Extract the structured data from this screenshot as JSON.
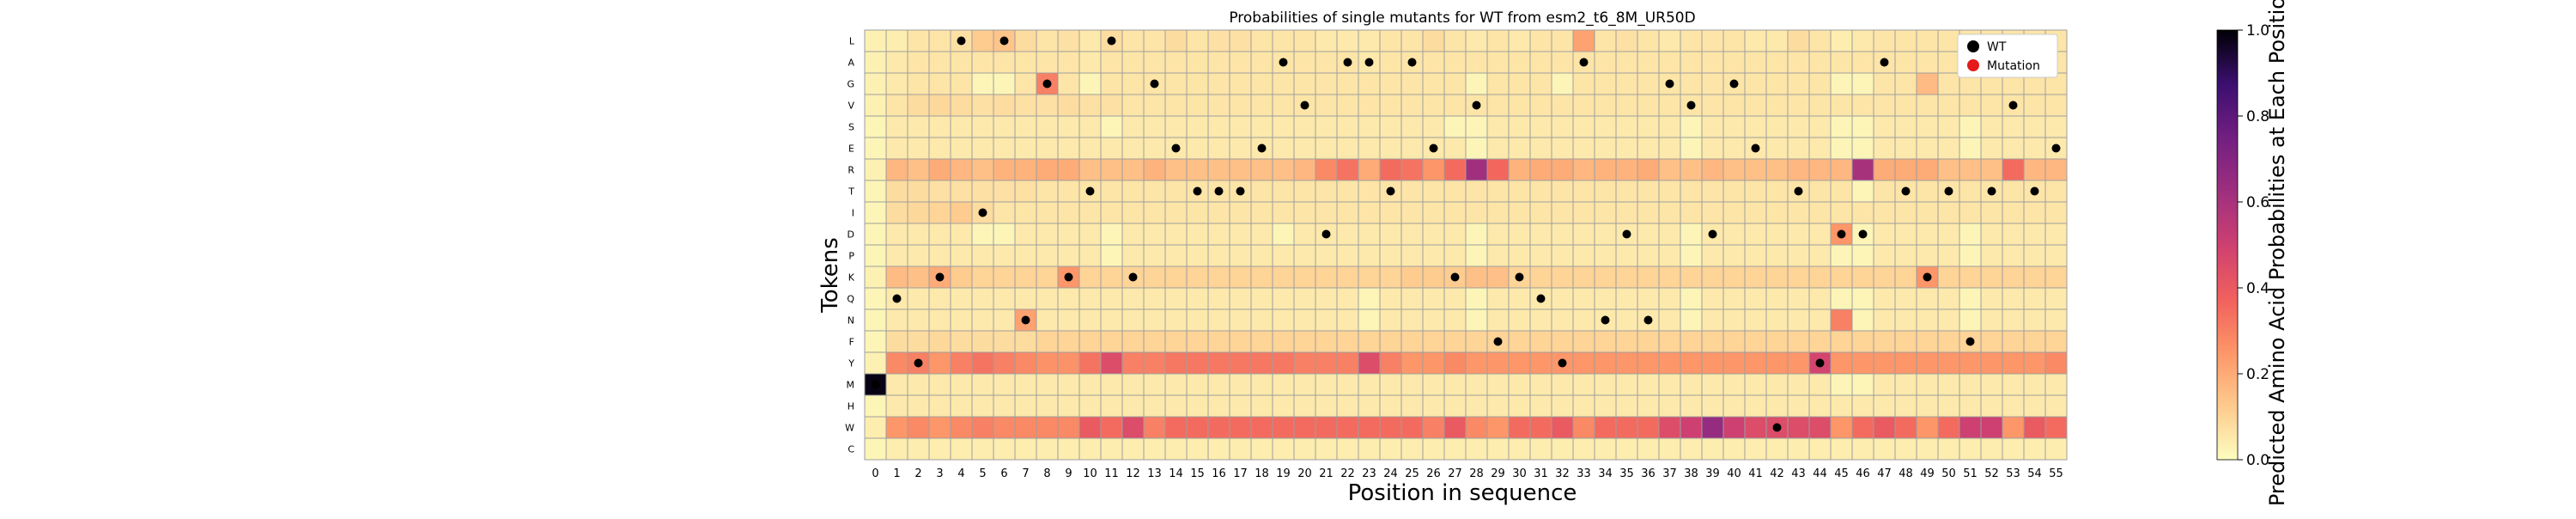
{
  "chart_data": {
    "type": "heatmap",
    "title": "Probabilities of single mutants for WT from esm2_t6_8M_UR50D",
    "xlabel": "Position in sequence",
    "ylabel": "Tokens",
    "colorbar_label": "Predicted Amino Acid Probabilities at Each Position",
    "colorbar_ticks": [
      "0.0",
      "0.2",
      "0.4",
      "0.6",
      "0.8",
      "1.0"
    ],
    "colorbar_range": [
      0,
      1
    ],
    "colormap": "magma_r",
    "tokens": [
      "L",
      "A",
      "G",
      "V",
      "S",
      "E",
      "R",
      "T",
      "I",
      "D",
      "P",
      "K",
      "Q",
      "N",
      "F",
      "Y",
      "M",
      "H",
      "W",
      "C"
    ],
    "positions": [
      0,
      1,
      2,
      3,
      4,
      5,
      6,
      7,
      8,
      9,
      10,
      11,
      12,
      13,
      14,
      15,
      16,
      17,
      18,
      19,
      20,
      21,
      22,
      23,
      24,
      25,
      26,
      27,
      28,
      29,
      30,
      31,
      32,
      33,
      34,
      35,
      36,
      37,
      38,
      39,
      40,
      41,
      42,
      43,
      44,
      45,
      46,
      47,
      48,
      49,
      50,
      51,
      52,
      53,
      54,
      55
    ],
    "wt_tokens": [
      "M",
      "Q",
      "Y",
      "K",
      "L",
      "I",
      "L",
      "N",
      "G",
      "K",
      "T",
      "L",
      "K",
      "G",
      "E",
      "T",
      "T",
      "T",
      "E",
      "A",
      "V",
      "D",
      "A",
      "A",
      "T",
      "A",
      "E",
      "K",
      "V",
      "F",
      "K",
      "Q",
      "Y",
      "A",
      "N",
      "D",
      "N",
      "G",
      "V",
      "D",
      "G",
      "E",
      "W",
      "T",
      "Y",
      "D",
      "D",
      "A",
      "T",
      "K",
      "T",
      "F",
      "T",
      "V",
      "T",
      "E"
    ],
    "legend": {
      "position": "upper-right",
      "items": [
        {
          "label": "WT",
          "color": "#000000"
        },
        {
          "label": "Mutation",
          "color": "#e41a1c"
        }
      ]
    },
    "grid": true,
    "values": [
      [
        0.03,
        0.04,
        0.06,
        0.06,
        0.07,
        0.12,
        0.14,
        0.08,
        0.06,
        0.07,
        0.05,
        0.08,
        0.06,
        0.06,
        0.08,
        0.06,
        0.07,
        0.07,
        0.06,
        0.06,
        0.06,
        0.05,
        0.05,
        0.05,
        0.06,
        0.06,
        0.08,
        0.06,
        0.05,
        0.06,
        0.05,
        0.06,
        0.06,
        0.22,
        0.06,
        0.07,
        0.06,
        0.05,
        0.06,
        0.06,
        0.06,
        0.05,
        0.05,
        0.08,
        0.06,
        0.04,
        0.05,
        0.06,
        0.06,
        0.06,
        0.06,
        0.06,
        0.06,
        0.06,
        0.06,
        0.06
      ],
      [
        0.03,
        0.05,
        0.06,
        0.06,
        0.06,
        0.06,
        0.06,
        0.06,
        0.06,
        0.06,
        0.05,
        0.06,
        0.06,
        0.06,
        0.06,
        0.06,
        0.06,
        0.06,
        0.06,
        0.06,
        0.06,
        0.06,
        0.06,
        0.05,
        0.06,
        0.06,
        0.06,
        0.06,
        0.06,
        0.06,
        0.06,
        0.06,
        0.06,
        0.06,
        0.06,
        0.06,
        0.06,
        0.06,
        0.06,
        0.06,
        0.06,
        0.06,
        0.06,
        0.06,
        0.06,
        0.06,
        0.06,
        0.06,
        0.06,
        0.06,
        0.06,
        0.06,
        0.06,
        0.06,
        0.06,
        0.06
      ],
      [
        0.03,
        0.05,
        0.06,
        0.06,
        0.06,
        0.02,
        0.02,
        0.06,
        0.3,
        0.06,
        0.02,
        0.06,
        0.06,
        0.06,
        0.06,
        0.06,
        0.06,
        0.06,
        0.06,
        0.06,
        0.06,
        0.06,
        0.06,
        0.06,
        0.06,
        0.06,
        0.06,
        0.06,
        0.02,
        0.06,
        0.06,
        0.06,
        0.02,
        0.06,
        0.06,
        0.06,
        0.06,
        0.06,
        0.06,
        0.06,
        0.06,
        0.06,
        0.06,
        0.06,
        0.06,
        0.02,
        0.02,
        0.06,
        0.06,
        0.16,
        0.06,
        0.06,
        0.06,
        0.06,
        0.06,
        0.06
      ],
      [
        0.03,
        0.06,
        0.08,
        0.09,
        0.08,
        0.07,
        0.08,
        0.07,
        0.07,
        0.08,
        0.07,
        0.07,
        0.06,
        0.06,
        0.06,
        0.06,
        0.06,
        0.06,
        0.06,
        0.06,
        0.06,
        0.06,
        0.06,
        0.06,
        0.06,
        0.06,
        0.06,
        0.06,
        0.06,
        0.06,
        0.06,
        0.06,
        0.06,
        0.06,
        0.06,
        0.06,
        0.06,
        0.06,
        0.06,
        0.06,
        0.06,
        0.06,
        0.06,
        0.06,
        0.06,
        0.06,
        0.06,
        0.06,
        0.06,
        0.06,
        0.06,
        0.06,
        0.06,
        0.06,
        0.06,
        0.06
      ],
      [
        0.02,
        0.05,
        0.05,
        0.05,
        0.05,
        0.05,
        0.05,
        0.05,
        0.05,
        0.05,
        0.05,
        0.02,
        0.05,
        0.05,
        0.05,
        0.05,
        0.05,
        0.05,
        0.05,
        0.05,
        0.05,
        0.05,
        0.05,
        0.05,
        0.05,
        0.05,
        0.05,
        0.02,
        0.02,
        0.05,
        0.05,
        0.05,
        0.05,
        0.05,
        0.05,
        0.05,
        0.05,
        0.05,
        0.02,
        0.05,
        0.05,
        0.05,
        0.05,
        0.05,
        0.05,
        0.02,
        0.02,
        0.05,
        0.05,
        0.05,
        0.05,
        0.02,
        0.05,
        0.05,
        0.05,
        0.05
      ],
      [
        0.02,
        0.05,
        0.05,
        0.05,
        0.05,
        0.05,
        0.05,
        0.05,
        0.05,
        0.05,
        0.05,
        0.05,
        0.05,
        0.05,
        0.05,
        0.05,
        0.05,
        0.05,
        0.05,
        0.05,
        0.05,
        0.05,
        0.05,
        0.05,
        0.05,
        0.05,
        0.05,
        0.05,
        0.02,
        0.05,
        0.05,
        0.05,
        0.05,
        0.05,
        0.05,
        0.05,
        0.05,
        0.05,
        0.02,
        0.05,
        0.05,
        0.05,
        0.05,
        0.05,
        0.05,
        0.02,
        0.02,
        0.05,
        0.05,
        0.05,
        0.05,
        0.02,
        0.05,
        0.05,
        0.05,
        0.05
      ],
      [
        0.03,
        0.17,
        0.15,
        0.2,
        0.17,
        0.15,
        0.18,
        0.18,
        0.2,
        0.2,
        0.15,
        0.15,
        0.15,
        0.18,
        0.15,
        0.15,
        0.15,
        0.15,
        0.15,
        0.15,
        0.17,
        0.28,
        0.33,
        0.2,
        0.35,
        0.33,
        0.25,
        0.35,
        0.62,
        0.36,
        0.18,
        0.2,
        0.2,
        0.17,
        0.18,
        0.18,
        0.2,
        0.15,
        0.15,
        0.17,
        0.15,
        0.15,
        0.15,
        0.17,
        0.17,
        0.17,
        0.6,
        0.2,
        0.2,
        0.2,
        0.15,
        0.15,
        0.15,
        0.35,
        0.17,
        0.17
      ],
      [
        0.02,
        0.08,
        0.08,
        0.07,
        0.07,
        0.07,
        0.07,
        0.07,
        0.06,
        0.06,
        0.06,
        0.06,
        0.06,
        0.06,
        0.06,
        0.06,
        0.06,
        0.06,
        0.06,
        0.06,
        0.06,
        0.06,
        0.06,
        0.06,
        0.06,
        0.06,
        0.06,
        0.06,
        0.06,
        0.06,
        0.06,
        0.06,
        0.06,
        0.06,
        0.06,
        0.06,
        0.06,
        0.06,
        0.06,
        0.06,
        0.06,
        0.06,
        0.06,
        0.06,
        0.06,
        0.06,
        0.02,
        0.06,
        0.06,
        0.06,
        0.06,
        0.06,
        0.06,
        0.06,
        0.06,
        0.06
      ],
      [
        0.02,
        0.08,
        0.09,
        0.1,
        0.12,
        0.08,
        0.06,
        0.06,
        0.06,
        0.06,
        0.06,
        0.06,
        0.06,
        0.06,
        0.06,
        0.06,
        0.06,
        0.06,
        0.06,
        0.06,
        0.06,
        0.06,
        0.06,
        0.06,
        0.06,
        0.06,
        0.06,
        0.06,
        0.06,
        0.06,
        0.06,
        0.06,
        0.06,
        0.06,
        0.06,
        0.06,
        0.06,
        0.06,
        0.06,
        0.06,
        0.06,
        0.06,
        0.06,
        0.06,
        0.06,
        0.06,
        0.06,
        0.06,
        0.06,
        0.06,
        0.06,
        0.06,
        0.06,
        0.06,
        0.06,
        0.06
      ],
      [
        0.02,
        0.05,
        0.05,
        0.05,
        0.05,
        0.02,
        0.02,
        0.05,
        0.05,
        0.05,
        0.05,
        0.02,
        0.05,
        0.05,
        0.05,
        0.05,
        0.05,
        0.05,
        0.05,
        0.02,
        0.05,
        0.05,
        0.05,
        0.05,
        0.05,
        0.05,
        0.05,
        0.05,
        0.02,
        0.05,
        0.05,
        0.05,
        0.05,
        0.05,
        0.05,
        0.05,
        0.05,
        0.05,
        0.02,
        0.05,
        0.05,
        0.05,
        0.05,
        0.05,
        0.05,
        0.25,
        0.02,
        0.05,
        0.05,
        0.05,
        0.05,
        0.02,
        0.05,
        0.05,
        0.05,
        0.05
      ],
      [
        0.02,
        0.05,
        0.05,
        0.05,
        0.05,
        0.05,
        0.05,
        0.05,
        0.05,
        0.05,
        0.05,
        0.02,
        0.05,
        0.05,
        0.05,
        0.05,
        0.05,
        0.05,
        0.05,
        0.05,
        0.05,
        0.05,
        0.05,
        0.05,
        0.05,
        0.05,
        0.05,
        0.05,
        0.02,
        0.05,
        0.05,
        0.05,
        0.05,
        0.05,
        0.05,
        0.05,
        0.05,
        0.05,
        0.02,
        0.05,
        0.05,
        0.05,
        0.05,
        0.05,
        0.05,
        0.02,
        0.02,
        0.05,
        0.05,
        0.05,
        0.05,
        0.02,
        0.05,
        0.05,
        0.05,
        0.05
      ],
      [
        0.03,
        0.16,
        0.15,
        0.2,
        0.12,
        0.1,
        0.1,
        0.1,
        0.1,
        0.25,
        0.1,
        0.1,
        0.1,
        0.1,
        0.1,
        0.1,
        0.1,
        0.1,
        0.1,
        0.1,
        0.1,
        0.1,
        0.1,
        0.1,
        0.1,
        0.12,
        0.12,
        0.12,
        0.15,
        0.15,
        0.1,
        0.1,
        0.1,
        0.1,
        0.1,
        0.1,
        0.1,
        0.1,
        0.1,
        0.1,
        0.1,
        0.1,
        0.1,
        0.1,
        0.1,
        0.1,
        0.1,
        0.1,
        0.1,
        0.25,
        0.1,
        0.1,
        0.1,
        0.1,
        0.1,
        0.1
      ],
      [
        0.02,
        0.05,
        0.05,
        0.05,
        0.05,
        0.05,
        0.05,
        0.05,
        0.05,
        0.05,
        0.05,
        0.05,
        0.05,
        0.05,
        0.05,
        0.05,
        0.05,
        0.05,
        0.05,
        0.05,
        0.05,
        0.05,
        0.05,
        0.02,
        0.05,
        0.05,
        0.05,
        0.05,
        0.02,
        0.05,
        0.05,
        0.05,
        0.05,
        0.05,
        0.05,
        0.05,
        0.05,
        0.05,
        0.02,
        0.05,
        0.05,
        0.05,
        0.05,
        0.05,
        0.05,
        0.02,
        0.02,
        0.05,
        0.05,
        0.05,
        0.05,
        0.02,
        0.05,
        0.05,
        0.05,
        0.05
      ],
      [
        0.02,
        0.05,
        0.05,
        0.05,
        0.05,
        0.05,
        0.05,
        0.22,
        0.05,
        0.05,
        0.05,
        0.05,
        0.05,
        0.05,
        0.05,
        0.05,
        0.05,
        0.05,
        0.05,
        0.05,
        0.05,
        0.05,
        0.05,
        0.02,
        0.05,
        0.05,
        0.05,
        0.05,
        0.02,
        0.05,
        0.05,
        0.05,
        0.05,
        0.05,
        0.05,
        0.05,
        0.05,
        0.05,
        0.02,
        0.05,
        0.05,
        0.05,
        0.05,
        0.05,
        0.05,
        0.3,
        0.02,
        0.05,
        0.05,
        0.05,
        0.05,
        0.02,
        0.05,
        0.05,
        0.05,
        0.05
      ],
      [
        0.02,
        0.08,
        0.08,
        0.09,
        0.08,
        0.08,
        0.08,
        0.08,
        0.1,
        0.1,
        0.1,
        0.1,
        0.1,
        0.1,
        0.1,
        0.1,
        0.1,
        0.1,
        0.1,
        0.1,
        0.1,
        0.1,
        0.1,
        0.1,
        0.1,
        0.1,
        0.1,
        0.1,
        0.1,
        0.1,
        0.1,
        0.1,
        0.1,
        0.1,
        0.1,
        0.1,
        0.1,
        0.1,
        0.1,
        0.1,
        0.1,
        0.1,
        0.1,
        0.1,
        0.1,
        0.1,
        0.1,
        0.1,
        0.1,
        0.1,
        0.1,
        0.1,
        0.1,
        0.1,
        0.1,
        0.1
      ],
      [
        0.03,
        0.28,
        0.3,
        0.25,
        0.3,
        0.33,
        0.3,
        0.28,
        0.26,
        0.26,
        0.33,
        0.45,
        0.3,
        0.3,
        0.32,
        0.32,
        0.32,
        0.32,
        0.32,
        0.32,
        0.3,
        0.3,
        0.3,
        0.45,
        0.3,
        0.25,
        0.25,
        0.28,
        0.25,
        0.25,
        0.25,
        0.25,
        0.25,
        0.25,
        0.25,
        0.25,
        0.25,
        0.25,
        0.25,
        0.25,
        0.25,
        0.25,
        0.25,
        0.25,
        0.48,
        0.25,
        0.25,
        0.25,
        0.25,
        0.25,
        0.25,
        0.25,
        0.25,
        0.25,
        0.25,
        0.28
      ],
      [
        0.98,
        0.05,
        0.05,
        0.05,
        0.05,
        0.05,
        0.05,
        0.05,
        0.05,
        0.05,
        0.05,
        0.05,
        0.05,
        0.05,
        0.05,
        0.05,
        0.05,
        0.05,
        0.05,
        0.05,
        0.05,
        0.05,
        0.05,
        0.05,
        0.05,
        0.05,
        0.05,
        0.05,
        0.05,
        0.05,
        0.05,
        0.05,
        0.05,
        0.05,
        0.05,
        0.05,
        0.05,
        0.05,
        0.05,
        0.05,
        0.05,
        0.05,
        0.05,
        0.05,
        0.05,
        0.02,
        0.02,
        0.05,
        0.05,
        0.05,
        0.05,
        0.05,
        0.05,
        0.05,
        0.05,
        0.05
      ],
      [
        0.02,
        0.05,
        0.05,
        0.05,
        0.05,
        0.05,
        0.05,
        0.05,
        0.05,
        0.05,
        0.05,
        0.05,
        0.05,
        0.05,
        0.05,
        0.05,
        0.05,
        0.05,
        0.05,
        0.05,
        0.05,
        0.05,
        0.05,
        0.05,
        0.05,
        0.05,
        0.05,
        0.05,
        0.05,
        0.05,
        0.05,
        0.05,
        0.05,
        0.05,
        0.05,
        0.05,
        0.05,
        0.05,
        0.05,
        0.05,
        0.05,
        0.05,
        0.05,
        0.05,
        0.05,
        0.05,
        0.05,
        0.05,
        0.05,
        0.05,
        0.05,
        0.05,
        0.05,
        0.05,
        0.05,
        0.05
      ],
      [
        0.04,
        0.25,
        0.28,
        0.25,
        0.28,
        0.3,
        0.28,
        0.28,
        0.28,
        0.28,
        0.4,
        0.35,
        0.45,
        0.3,
        0.35,
        0.35,
        0.35,
        0.35,
        0.35,
        0.35,
        0.35,
        0.35,
        0.35,
        0.35,
        0.35,
        0.35,
        0.3,
        0.4,
        0.28,
        0.25,
        0.35,
        0.35,
        0.4,
        0.28,
        0.35,
        0.35,
        0.35,
        0.45,
        0.5,
        0.65,
        0.5,
        0.45,
        0.45,
        0.45,
        0.45,
        0.25,
        0.35,
        0.4,
        0.35,
        0.25,
        0.35,
        0.5,
        0.5,
        0.25,
        0.4,
        0.35
      ],
      [
        0.02,
        0.04,
        0.04,
        0.04,
        0.04,
        0.04,
        0.04,
        0.04,
        0.04,
        0.04,
        0.04,
        0.04,
        0.04,
        0.04,
        0.04,
        0.04,
        0.04,
        0.04,
        0.04,
        0.04,
        0.04,
        0.04,
        0.04,
        0.04,
        0.04,
        0.04,
        0.04,
        0.04,
        0.04,
        0.04,
        0.04,
        0.04,
        0.04,
        0.04,
        0.04,
        0.04,
        0.04,
        0.04,
        0.04,
        0.04,
        0.04,
        0.04,
        0.04,
        0.04,
        0.04,
        0.04,
        0.04,
        0.04,
        0.04,
        0.04,
        0.04,
        0.04,
        0.04,
        0.04,
        0.04,
        0.04
      ]
    ]
  }
}
